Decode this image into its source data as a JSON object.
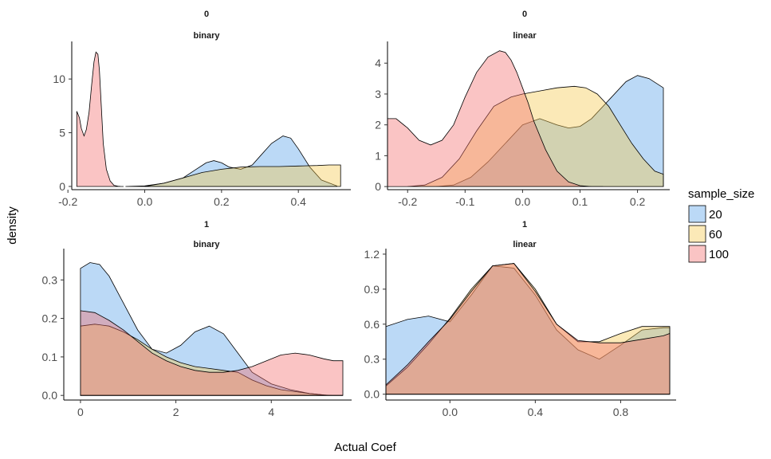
{
  "chart_data": {
    "type": "area",
    "xlabel": "Actual Coef",
    "ylabel": "density",
    "legend": {
      "title": "sample_size",
      "placement": "right",
      "entries": [
        {
          "label": "20",
          "color": "#56A0E8"
        },
        {
          "label": "60",
          "color": "#F5C84B"
        },
        {
          "label": "100",
          "color": "#F26B6B"
        }
      ]
    },
    "panels": [
      {
        "strip_top": "0",
        "strip_bottom": "binary",
        "xlim": [
          -0.19,
          0.52
        ],
        "ylim": [
          -0.3,
          13.2
        ],
        "xticks": [
          -0.2,
          0.0,
          0.2,
          0.4
        ],
        "xtick_labels": [
          "-0.2",
          "0.0",
          "0.2",
          "0.4"
        ],
        "yticks": [
          0,
          5,
          10
        ],
        "ytick_labels": [
          "0",
          "5",
          "10"
        ],
        "series": [
          {
            "name": "100",
            "color": "#F26B6B",
            "x": [
              -0.177,
              -0.17,
              -0.165,
              -0.158,
              -0.152,
              -0.145,
              -0.138,
              -0.132,
              -0.127,
              -0.122,
              -0.118,
              -0.113,
              -0.108,
              -0.1,
              -0.09,
              -0.08,
              -0.07,
              -0.062,
              -0.055
            ],
            "y": [
              7.0,
              6.4,
              5.4,
              4.7,
              5.3,
              6.9,
              9.5,
              11.6,
              12.5,
              12.3,
              10.8,
              7.4,
              4.0,
              1.6,
              0.5,
              0.1,
              0.02,
              0.0,
              0.0
            ]
          },
          {
            "name": "20",
            "color": "#56A0E8",
            "x": [
              -0.05,
              0.0,
              0.05,
              0.1,
              0.13,
              0.16,
              0.18,
              0.2,
              0.22,
              0.25,
              0.28,
              0.3,
              0.33,
              0.36,
              0.38,
              0.4,
              0.43,
              0.46,
              0.5
            ],
            "y": [
              0.0,
              0.05,
              0.3,
              0.8,
              1.5,
              2.2,
              2.4,
              2.2,
              1.8,
              1.6,
              2.0,
              2.8,
              4.0,
              4.7,
              4.5,
              3.5,
              1.8,
              0.6,
              0.05
            ]
          },
          {
            "name": "60",
            "color": "#F5C84B",
            "x": [
              0.0,
              0.05,
              0.1,
              0.15,
              0.2,
              0.25,
              0.3,
              0.35,
              0.4,
              0.45,
              0.48,
              0.5,
              0.51
            ],
            "y": [
              0.0,
              0.3,
              0.8,
              1.3,
              1.6,
              1.8,
              1.85,
              1.85,
              1.9,
              1.95,
              2.0,
              2.0,
              2.0
            ]
          }
        ]
      },
      {
        "strip_top": "0",
        "strip_bottom": "linear",
        "xlim": [
          -0.235,
          0.245
        ],
        "ylim": [
          -0.1,
          4.6
        ],
        "xticks": [
          -0.2,
          -0.1,
          0.0,
          0.1,
          0.2
        ],
        "xtick_labels": [
          "-0.2",
          "-0.1",
          "0.0",
          "0.1",
          "0.2"
        ],
        "yticks": [
          0,
          1,
          2,
          3,
          4
        ],
        "ytick_labels": [
          "0",
          "1",
          "2",
          "3",
          "4"
        ],
        "series": [
          {
            "name": "20",
            "color": "#56A0E8",
            "x": [
              -0.15,
              -0.12,
              -0.09,
              -0.06,
              -0.03,
              0.0,
              0.03,
              0.06,
              0.08,
              0.1,
              0.12,
              0.15,
              0.18,
              0.2,
              0.22,
              0.245
            ],
            "y": [
              0.0,
              0.05,
              0.3,
              0.8,
              1.4,
              2.0,
              2.2,
              2.0,
              1.9,
              1.95,
              2.2,
              2.8,
              3.4,
              3.6,
              3.5,
              3.2
            ]
          },
          {
            "name": "60",
            "color": "#F5C84B",
            "x": [
              -0.2,
              -0.17,
              -0.14,
              -0.11,
              -0.08,
              -0.05,
              -0.02,
              0.0,
              0.03,
              0.06,
              0.09,
              0.11,
              0.13,
              0.15,
              0.17,
              0.19,
              0.21,
              0.23,
              0.245
            ],
            "y": [
              0.0,
              0.05,
              0.3,
              0.9,
              1.8,
              2.6,
              2.9,
              3.0,
              3.1,
              3.2,
              3.25,
              3.2,
              3.0,
              2.6,
              2.0,
              1.4,
              0.9,
              0.5,
              0.4
            ]
          },
          {
            "name": "100",
            "color": "#F26B6B",
            "x": [
              -0.235,
              -0.22,
              -0.2,
              -0.18,
              -0.16,
              -0.14,
              -0.12,
              -0.1,
              -0.08,
              -0.06,
              -0.04,
              -0.03,
              -0.02,
              -0.01,
              0.0,
              0.01,
              0.02,
              0.04,
              0.06,
              0.08,
              0.1,
              0.12,
              0.14
            ],
            "y": [
              2.2,
              2.2,
              1.9,
              1.5,
              1.35,
              1.5,
              2.0,
              2.9,
              3.7,
              4.2,
              4.4,
              4.35,
              4.1,
              3.7,
              3.2,
              2.7,
              2.1,
              1.2,
              0.5,
              0.15,
              0.03,
              0.0,
              0.0
            ]
          }
        ]
      },
      {
        "strip_top": "1",
        "strip_bottom": "binary",
        "xlim": [
          -0.35,
          5.55
        ],
        "ylim": [
          -0.012,
          0.373
        ],
        "xticks": [
          0,
          2,
          4
        ],
        "xtick_labels": [
          "0",
          "2",
          "4"
        ],
        "yticks": [
          0.0,
          0.1,
          0.2,
          0.3
        ],
        "ytick_labels": [
          "0.0",
          "0.1",
          "0.2",
          "0.3"
        ],
        "series": [
          {
            "name": "20",
            "color": "#56A0E8",
            "x": [
              0.0,
              0.2,
              0.4,
              0.6,
              0.9,
              1.2,
              1.5,
              1.8,
              2.1,
              2.4,
              2.7,
              3.0,
              3.3,
              3.6,
              4.0,
              4.4,
              4.8,
              5.2,
              5.5
            ],
            "y": [
              0.33,
              0.345,
              0.34,
              0.31,
              0.24,
              0.17,
              0.12,
              0.11,
              0.13,
              0.165,
              0.18,
              0.16,
              0.11,
              0.06,
              0.03,
              0.015,
              0.005,
              0.0,
              0.0
            ]
          },
          {
            "name": "60",
            "color": "#F5C84B",
            "x": [
              0.0,
              0.3,
              0.6,
              0.9,
              1.2,
              1.5,
              1.8,
              2.1,
              2.4,
              2.7,
              3.0,
              3.3,
              3.6,
              3.9,
              4.2,
              4.5,
              4.8,
              5.1,
              5.3,
              5.5
            ],
            "y": [
              0.18,
              0.185,
              0.18,
              0.165,
              0.145,
              0.12,
              0.1,
              0.085,
              0.075,
              0.07,
              0.065,
              0.06,
              0.04,
              0.025,
              0.015,
              0.01,
              0.005,
              0.001,
              0.0,
              0.0
            ]
          },
          {
            "name": "100",
            "color": "#F26B6B",
            "x": [
              0.0,
              0.3,
              0.6,
              0.9,
              1.2,
              1.5,
              1.8,
              2.1,
              2.4,
              2.7,
              3.0,
              3.3,
              3.6,
              3.9,
              4.2,
              4.5,
              4.8,
              5.1,
              5.3,
              5.5
            ],
            "y": [
              0.22,
              0.215,
              0.195,
              0.17,
              0.14,
              0.11,
              0.09,
              0.075,
              0.065,
              0.06,
              0.06,
              0.065,
              0.075,
              0.09,
              0.105,
              0.11,
              0.105,
              0.095,
              0.09,
              0.09
            ]
          }
        ]
      },
      {
        "strip_top": "1",
        "strip_bottom": "linear",
        "xlim": [
          -0.3,
          1.03
        ],
        "ylim": [
          -0.05,
          1.22
        ],
        "xticks": [
          0.0,
          0.4,
          0.8
        ],
        "xtick_labels": [
          "0.0",
          "0.4",
          "0.8"
        ],
        "yticks": [
          0.0,
          0.3,
          0.6,
          0.9,
          1.2
        ],
        "ytick_labels": [
          "0.0",
          "0.3",
          "0.6",
          "0.9",
          "1.2"
        ],
        "series": [
          {
            "name": "20",
            "color": "#56A0E8",
            "x": [
              -0.3,
              -0.2,
              -0.1,
              0.0,
              0.1,
              0.2,
              0.3,
              0.4,
              0.5,
              0.6,
              0.7,
              0.8,
              0.9,
              1.0,
              1.03
            ],
            "y": [
              0.58,
              0.64,
              0.67,
              0.62,
              0.85,
              1.1,
              1.08,
              0.85,
              0.55,
              0.38,
              0.3,
              0.42,
              0.55,
              0.57,
              0.57
            ]
          },
          {
            "name": "60",
            "color": "#F5C84B",
            "x": [
              -0.3,
              -0.2,
              -0.1,
              0.0,
              0.1,
              0.2,
              0.3,
              0.4,
              0.5,
              0.6,
              0.7,
              0.8,
              0.9,
              1.0,
              1.03
            ],
            "y": [
              0.07,
              0.23,
              0.43,
              0.65,
              0.9,
              1.1,
              1.12,
              0.9,
              0.6,
              0.45,
              0.45,
              0.52,
              0.58,
              0.58,
              0.58
            ]
          },
          {
            "name": "100",
            "color": "#F26B6B",
            "x": [
              -0.3,
              -0.2,
              -0.1,
              0.0,
              0.1,
              0.2,
              0.3,
              0.4,
              0.5,
              0.6,
              0.7,
              0.8,
              0.9,
              1.0,
              1.03
            ],
            "y": [
              0.08,
              0.25,
              0.45,
              0.64,
              0.88,
              1.1,
              1.12,
              0.88,
              0.6,
              0.46,
              0.44,
              0.44,
              0.47,
              0.5,
              0.52
            ]
          }
        ]
      }
    ]
  }
}
